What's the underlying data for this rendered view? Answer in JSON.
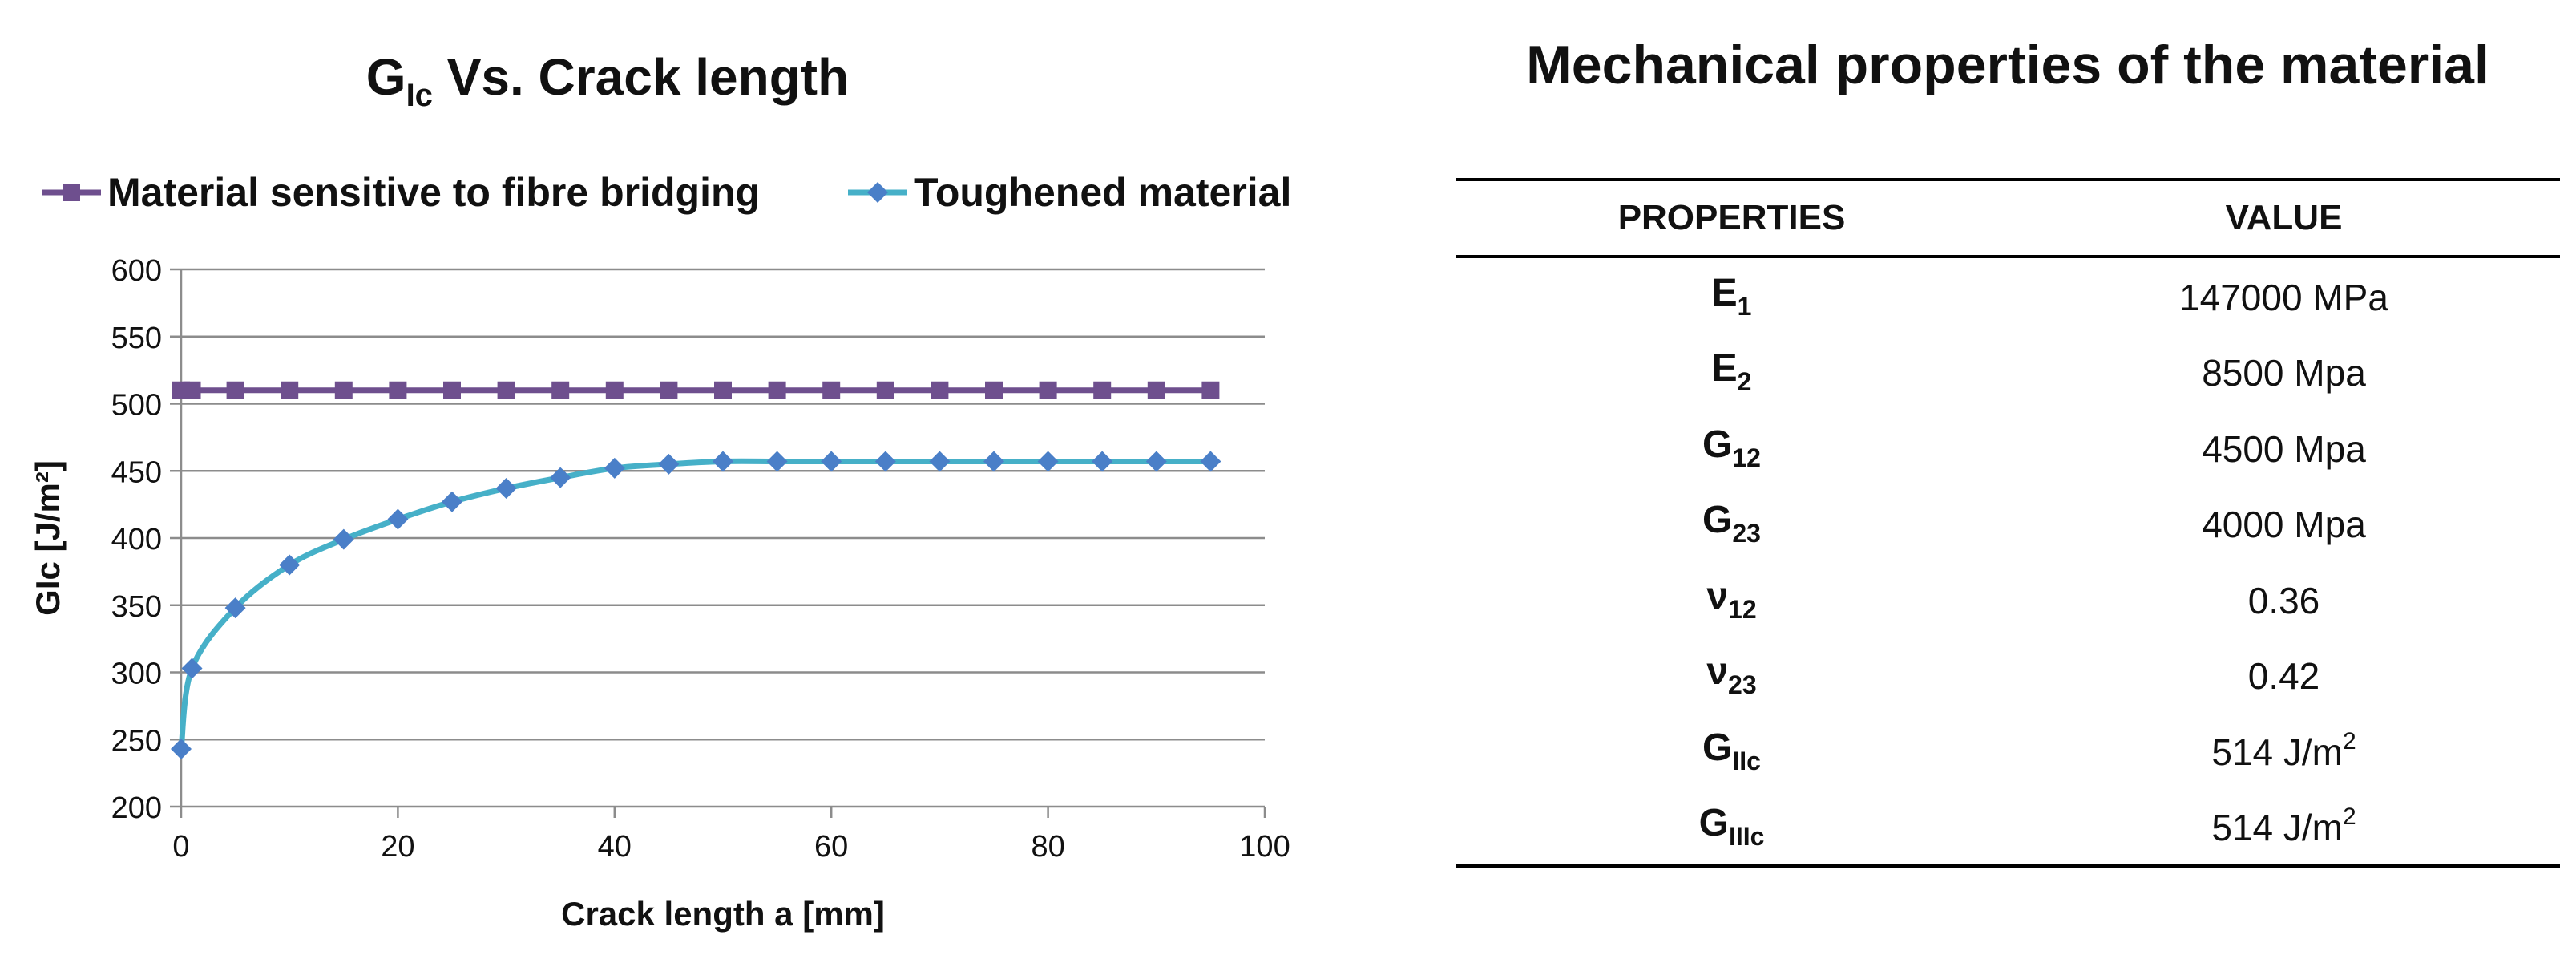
{
  "chart_data": {
    "type": "line",
    "title": "Vs. Crack length",
    "title_symbol": {
      "base": "G",
      "sub": "Ic"
    },
    "xlabel": "Crack length a [mm]",
    "ylabel": "GIc [J/m²]",
    "xlim": [
      0,
      100
    ],
    "ylim": [
      200,
      600
    ],
    "x_ticks": [
      0,
      20,
      40,
      60,
      80,
      100
    ],
    "y_ticks": [
      200,
      250,
      300,
      350,
      400,
      450,
      500,
      550,
      600
    ],
    "grid": "horizontal",
    "legend_position": "top",
    "series": [
      {
        "name": "Material sensitive to fibre bridging",
        "color": "#6e4f8e",
        "marker": "square",
        "x": [
          0,
          1,
          5,
          10,
          15,
          20,
          25,
          30,
          35,
          40,
          45,
          50,
          55,
          60,
          65,
          70,
          75,
          80,
          85,
          90,
          95
        ],
        "values": [
          510,
          510,
          510,
          510,
          510,
          510,
          510,
          510,
          510,
          510,
          510,
          510,
          510,
          510,
          510,
          510,
          510,
          510,
          510,
          510,
          510
        ]
      },
      {
        "name": "Toughened material",
        "color": "#46b0c8",
        "marker_color": "#4a7fc8",
        "marker": "diamond",
        "x": [
          0,
          1,
          5,
          10,
          15,
          20,
          25,
          30,
          35,
          40,
          45,
          50,
          55,
          60,
          65,
          70,
          75,
          80,
          85,
          90,
          95
        ],
        "values": [
          243,
          303,
          348,
          380,
          399,
          414,
          427,
          437,
          445,
          452,
          455,
          457,
          457,
          457,
          457,
          457,
          457,
          457,
          457,
          457,
          457
        ]
      }
    ]
  },
  "table": {
    "title": "Mechanical properties of the material",
    "headers": [
      "PROPERTIES",
      "VALUE"
    ],
    "rows": [
      {
        "base": "E",
        "sub": "1",
        "value": "147000 MPa",
        "sup": ""
      },
      {
        "base": "E",
        "sub": "2",
        "value": "8500 Mpa",
        "sup": ""
      },
      {
        "base": "G",
        "sub": "12",
        "value": "4500 Mpa",
        "sup": ""
      },
      {
        "base": "G",
        "sub": "23",
        "value": "4000 Mpa",
        "sup": ""
      },
      {
        "base": "ν",
        "sub": "12",
        "value": "0.36",
        "sup": ""
      },
      {
        "base": "ν",
        "sub": "23",
        "value": "0.42",
        "sup": ""
      },
      {
        "base": "G",
        "sub": "IIc",
        "value": "514 J/m",
        "sup": "2"
      },
      {
        "base": "G",
        "sub": "IIIc",
        "value": "514 J/m",
        "sup": "2"
      }
    ]
  }
}
